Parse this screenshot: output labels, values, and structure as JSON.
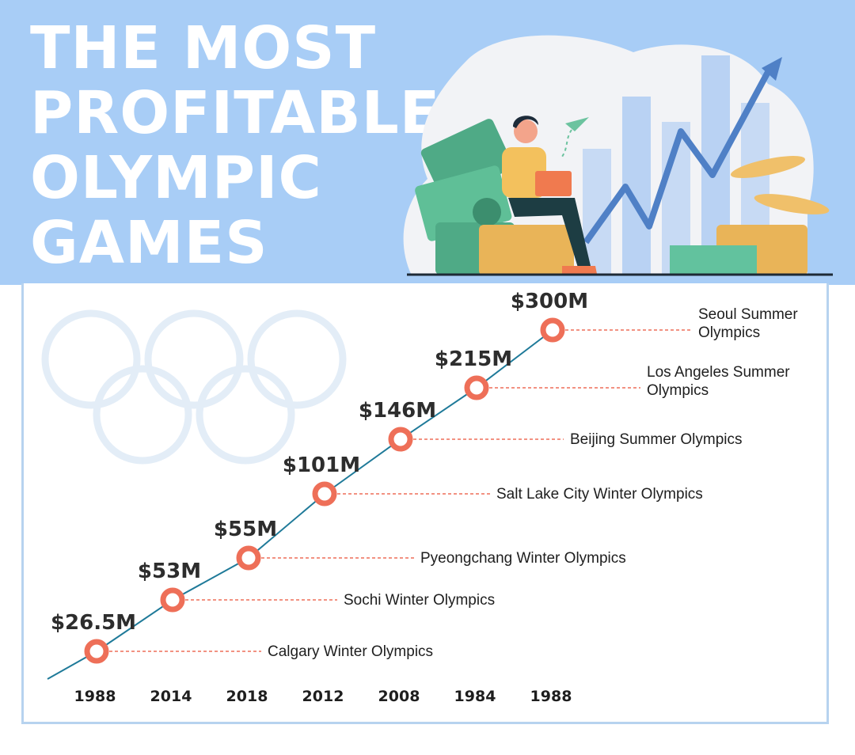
{
  "header": {
    "title_lines": [
      "THE MOST",
      "PROFITABLE",
      "OLYMPIC",
      "GAMES"
    ]
  },
  "illustration": {
    "icons": [
      "person-with-laptop-icon",
      "money-bills-icon",
      "coin-stack-icon",
      "bar-chart-icon",
      "rising-arrow-icon",
      "paper-plane-icon"
    ]
  },
  "decor": {
    "icon": "olympic-rings-icon"
  },
  "colors": {
    "header_bg": "#a8cdf6",
    "line": "#1f7a99",
    "marker": "#ee6f58",
    "leader": "#ee6f58",
    "panel_border": "#b7d3ef",
    "rings": "#e3edf7"
  },
  "chart_data": {
    "type": "line",
    "title": "THE MOST PROFITABLE OLYMPIC GAMES",
    "categories": [
      "1988",
      "2014",
      "2018",
      "2012",
      "2008",
      "1984",
      "1988"
    ],
    "value_labels": [
      "$26.5M",
      "$53M",
      "$55M",
      "$101M",
      "$146M",
      "$215M",
      "$300M"
    ],
    "series": [
      {
        "values": [
          26.5,
          53,
          55,
          101,
          146,
          215,
          300
        ]
      }
    ],
    "event_labels": [
      [
        "Calgary Winter Olympics"
      ],
      [
        "Sochi Winter Olympics"
      ],
      [
        "Pyeongchang Winter Olympics"
      ],
      [
        "Salt Lake City Winter Olympics"
      ],
      [
        "Beijing Summer Olympics"
      ],
      [
        "Los Angeles Summer",
        "Olympics"
      ],
      [
        "Seoul Summer",
        "Olympics"
      ]
    ],
    "xlabel": "",
    "ylabel": "",
    "grid": false
  }
}
